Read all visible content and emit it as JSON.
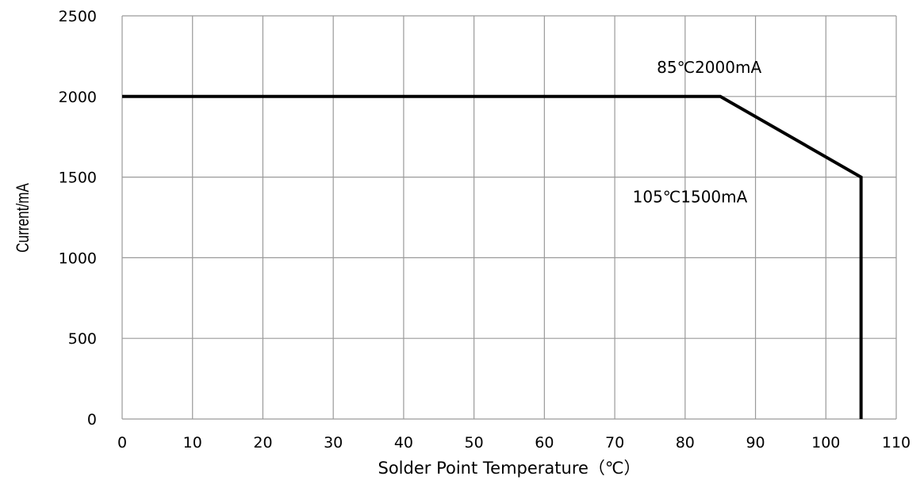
{
  "chart_data": {
    "type": "line",
    "title": "",
    "xlabel": "Solder Point Temperature（℃）",
    "ylabel": "Current/mA",
    "xlim": [
      0,
      110
    ],
    "ylim": [
      0,
      2500
    ],
    "x_ticks": [
      0,
      10,
      20,
      30,
      40,
      50,
      60,
      70,
      80,
      90,
      100,
      110
    ],
    "y_ticks": [
      0,
      500,
      1000,
      1500,
      2000,
      2500
    ],
    "grid": true,
    "series": [
      {
        "x": [
          0,
          85,
          105,
          105
        ],
        "y": [
          2000,
          2000,
          1500,
          0
        ],
        "color": "#000000"
      }
    ],
    "annotations": [
      {
        "text": "85℃2000mA",
        "x": 85,
        "y": 2000
      },
      {
        "text": "105℃1500mA",
        "x": 105,
        "y": 1500
      }
    ]
  }
}
